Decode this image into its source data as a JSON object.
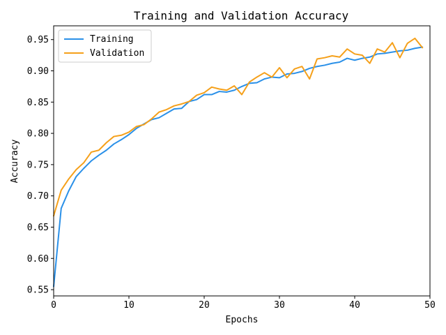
{
  "chart_data": {
    "type": "line",
    "title": "Training and Validation Accuracy",
    "xlabel": "Epochs",
    "ylabel": "Accuracy",
    "xlim": [
      0,
      50
    ],
    "ylim": [
      0.54,
      0.972
    ],
    "xticks": [
      0,
      10,
      20,
      30,
      40,
      50
    ],
    "xtick_labels": [
      "0",
      "10",
      "20",
      "30",
      "40",
      "50"
    ],
    "yticks": [
      0.55,
      0.6,
      0.65,
      0.7,
      0.75,
      0.8,
      0.85,
      0.9,
      0.95
    ],
    "ytick_labels": [
      "0.55",
      "0.60",
      "0.65",
      "0.70",
      "0.75",
      "0.80",
      "0.85",
      "0.90",
      "0.95"
    ],
    "grid": false,
    "legend_position": "top-left",
    "x": [
      0,
      1,
      2,
      3,
      4,
      5,
      6,
      7,
      8,
      9,
      10,
      11,
      12,
      13,
      14,
      15,
      16,
      17,
      18,
      19,
      20,
      21,
      22,
      23,
      24,
      25,
      26,
      27,
      28,
      29,
      30,
      31,
      32,
      33,
      34,
      35,
      36,
      37,
      38,
      39,
      40,
      41,
      42,
      43,
      44,
      45,
      46,
      47,
      48,
      49
    ],
    "series": [
      {
        "name": "Training",
        "color": "#2a90e8",
        "values": [
          0.555,
          0.68,
          0.708,
          0.731,
          0.744,
          0.756,
          0.765,
          0.773,
          0.783,
          0.79,
          0.798,
          0.808,
          0.815,
          0.822,
          0.825,
          0.832,
          0.839,
          0.84,
          0.851,
          0.854,
          0.862,
          0.862,
          0.867,
          0.866,
          0.869,
          0.875,
          0.88,
          0.881,
          0.887,
          0.89,
          0.889,
          0.895,
          0.896,
          0.899,
          0.904,
          0.907,
          0.909,
          0.912,
          0.914,
          0.92,
          0.917,
          0.92,
          0.922,
          0.927,
          0.928,
          0.93,
          0.932,
          0.933,
          0.936,
          0.938
        ]
      },
      {
        "name": "Validation",
        "color": "#f5a01a",
        "values": [
          0.668,
          0.709,
          0.727,
          0.742,
          0.753,
          0.77,
          0.773,
          0.785,
          0.795,
          0.797,
          0.802,
          0.811,
          0.814,
          0.823,
          0.834,
          0.838,
          0.844,
          0.847,
          0.851,
          0.861,
          0.865,
          0.874,
          0.871,
          0.869,
          0.876,
          0.862,
          0.882,
          0.89,
          0.897,
          0.89,
          0.905,
          0.889,
          0.903,
          0.907,
          0.887,
          0.919,
          0.921,
          0.924,
          0.922,
          0.935,
          0.927,
          0.925,
          0.912,
          0.935,
          0.93,
          0.945,
          0.921,
          0.944,
          0.952,
          0.937
        ]
      }
    ]
  }
}
